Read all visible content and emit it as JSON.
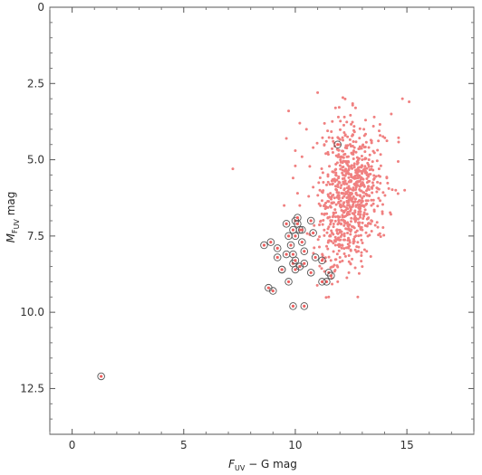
{
  "chart_data": {
    "type": "scatter",
    "xlabel_main": "F",
    "xlabel_sub": "UV",
    "xlabel_rest": " − G   mag",
    "ylabel_main": "M",
    "ylabel_sub": "F",
    "ylabel_subsub": "UV",
    "ylabel_rest": "   mag",
    "xlim": [
      -1,
      18
    ],
    "ylim": [
      0,
      14
    ],
    "y_inverted": true,
    "xticks": [
      0,
      5,
      10,
      15
    ],
    "yticks": [
      0,
      2.5,
      5.0,
      7.5,
      10.0,
      12.5
    ],
    "ytick_labels": [
      "0",
      "2.5",
      "5.0",
      "7.5",
      "10.0",
      "12.5"
    ],
    "grid": false,
    "colors": {
      "cloud": "#f08080",
      "circled_point": "#f06060",
      "circle_ring": "#555555",
      "frame": "#555555"
    },
    "series": [
      {
        "role": "background-points",
        "marker": "dot",
        "points": [
          [
            7.2,
            5.3
          ],
          [
            11.0,
            2.8
          ],
          [
            14.8,
            3.0
          ],
          [
            15.1,
            3.1
          ],
          [
            14.3,
            3.5
          ],
          [
            9.7,
            3.4
          ],
          [
            10.2,
            3.8
          ],
          [
            10.5,
            4.0
          ],
          [
            11.8,
            3.3
          ],
          [
            12.2,
            3.6
          ],
          [
            12.7,
            3.3
          ],
          [
            13.5,
            3.9
          ],
          [
            13.8,
            4.2
          ],
          [
            10.8,
            4.6
          ],
          [
            11.3,
            4.5
          ],
          [
            12.0,
            4.5
          ],
          [
            9.9,
            5.6
          ],
          [
            10.8,
            5.9
          ],
          [
            11.1,
            6.0
          ],
          [
            10.2,
            6.5
          ],
          [
            10.6,
            6.2
          ],
          [
            14.1,
            5.6
          ],
          [
            14.5,
            6.0
          ],
          [
            14.9,
            6.0
          ],
          [
            13.9,
            6.7
          ],
          [
            11.5,
            7.2
          ],
          [
            11.8,
            7.8
          ],
          [
            12.0,
            8.2
          ],
          [
            12.4,
            8.7
          ],
          [
            11.9,
            9.0
          ],
          [
            12.8,
            9.5
          ],
          [
            13.0,
            8.5
          ],
          [
            13.2,
            8.0
          ],
          [
            12.2,
            7.5
          ],
          [
            11.3,
            6.8
          ],
          [
            12.6,
            7.2
          ],
          [
            13.0,
            7.3
          ],
          [
            11.7,
            8.5
          ],
          [
            10.3,
            4.9
          ],
          [
            9.5,
            6.5
          ],
          [
            10.0,
            5.2
          ],
          [
            9.6,
            4.3
          ],
          [
            10.0,
            4.7
          ],
          [
            10.1,
            6.1
          ]
        ]
      },
      {
        "role": "cloud",
        "marker": "dot",
        "count": 620,
        "center_x": 12.6,
        "center_y": 5.8,
        "spread_x": 0.65,
        "spread_y": 1.0,
        "seed": 7
      },
      {
        "role": "cloud-tail",
        "marker": "dot",
        "count": 170,
        "center_x": 11.9,
        "center_y": 7.4,
        "spread_x": 0.55,
        "spread_y": 0.8,
        "seed": 19
      },
      {
        "role": "circled-points",
        "marker": "circled-dot",
        "points": [
          [
            1.3,
            12.1
          ],
          [
            8.6,
            7.8
          ],
          [
            8.9,
            7.7
          ],
          [
            9.2,
            7.9
          ],
          [
            9.2,
            8.2
          ],
          [
            9.4,
            8.6
          ],
          [
            9.6,
            7.1
          ],
          [
            9.7,
            7.5
          ],
          [
            9.8,
            7.8
          ],
          [
            9.9,
            7.3
          ],
          [
            10.0,
            7.0
          ],
          [
            10.1,
            7.1
          ],
          [
            10.2,
            7.3
          ],
          [
            10.0,
            7.5
          ],
          [
            9.9,
            8.1
          ],
          [
            9.9,
            8.4
          ],
          [
            10.0,
            8.3
          ],
          [
            10.2,
            8.5
          ],
          [
            10.0,
            8.6
          ],
          [
            10.3,
            7.7
          ],
          [
            10.4,
            8.0
          ],
          [
            10.4,
            8.4
          ],
          [
            10.7,
            7.0
          ],
          [
            10.8,
            7.4
          ],
          [
            10.7,
            8.7
          ],
          [
            10.9,
            8.2
          ],
          [
            11.2,
            8.3
          ],
          [
            11.5,
            8.7
          ],
          [
            11.6,
            8.8
          ],
          [
            11.4,
            9.0
          ],
          [
            11.2,
            9.0
          ],
          [
            8.8,
            9.2
          ],
          [
            9.0,
            9.3
          ],
          [
            9.4,
            8.6
          ],
          [
            9.7,
            9.0
          ],
          [
            9.9,
            9.8
          ],
          [
            10.4,
            9.8
          ],
          [
            11.9,
            4.5
          ],
          [
            9.6,
            8.1
          ],
          [
            10.1,
            6.9
          ],
          [
            10.3,
            7.3
          ]
        ]
      }
    ]
  }
}
